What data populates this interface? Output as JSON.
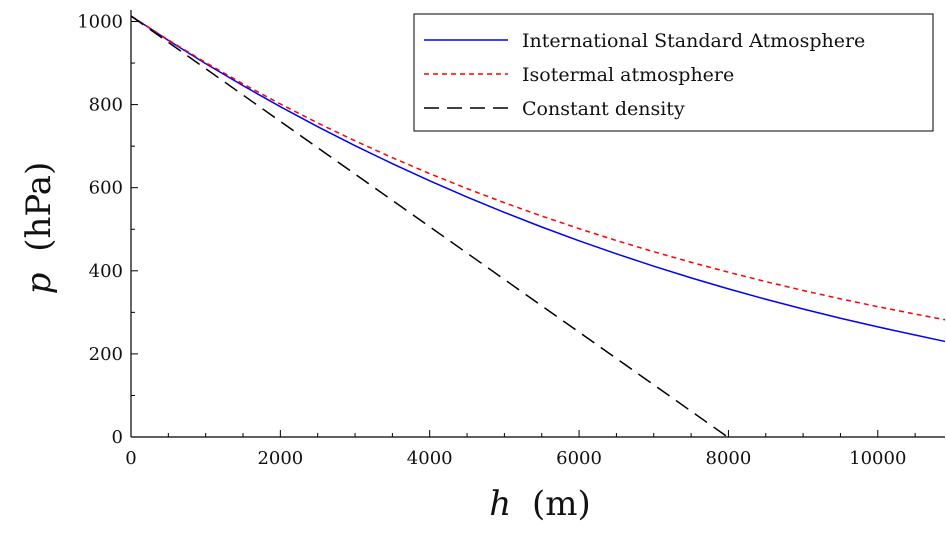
{
  "chart_data": {
    "type": "line",
    "xlabel": {
      "var": "h",
      "unit": "(m)"
    },
    "ylabel": {
      "var": "p",
      "unit": "(hPa)"
    },
    "xlim": [
      0,
      10900
    ],
    "ylim": [
      0,
      1013.25
    ],
    "xticks": [
      0,
      2000,
      4000,
      6000,
      8000,
      10000
    ],
    "yticks": [
      0,
      200,
      400,
      600,
      800,
      1000
    ],
    "x_minor_step": 500,
    "y_minor_step": 100,
    "grid": false,
    "legend_position": "top-right",
    "series": [
      {
        "name": "International Standard Atmosphere",
        "color": "#0000ff",
        "dash": "solid",
        "x": [
          0,
          500,
          1000,
          1500,
          2000,
          2500,
          3000,
          3500,
          4000,
          4500,
          5000,
          5500,
          6000,
          6500,
          7000,
          7500,
          8000,
          8500,
          9000,
          9500,
          10000,
          10500,
          10900
        ],
        "y": [
          1013.25,
          954.6,
          898.7,
          845.6,
          795.0,
          746.9,
          701.2,
          657.8,
          616.6,
          577.5,
          540.5,
          505.4,
          472.2,
          440.8,
          411.1,
          383.0,
          356.5,
          331.5,
          308.0,
          285.8,
          265.0,
          245.4,
          230.0
        ]
      },
      {
        "name": "Isotermal atmosphere",
        "color": "#ff0000",
        "dash": "dotted",
        "x": [
          0,
          500,
          1000,
          1500,
          2000,
          2500,
          3000,
          3500,
          4000,
          4500,
          5000,
          5500,
          6000,
          6500,
          7000,
          7500,
          8000,
          8500,
          9000,
          9500,
          10000,
          10500,
          10900
        ],
        "y": [
          1013.25,
          955.5,
          901.1,
          849.8,
          801.5,
          755.8,
          712.8,
          672.2,
          633.9,
          597.8,
          563.8,
          531.7,
          501.4,
          472.8,
          445.9,
          420.5,
          396.6,
          374.0,
          352.7,
          332.6,
          313.7,
          295.8,
          282.3
        ]
      },
      {
        "name": "Constant density",
        "color": "#000000",
        "dash": "dashed",
        "x": [
          0,
          7990
        ],
        "y": [
          1013.25,
          0
        ]
      }
    ]
  }
}
